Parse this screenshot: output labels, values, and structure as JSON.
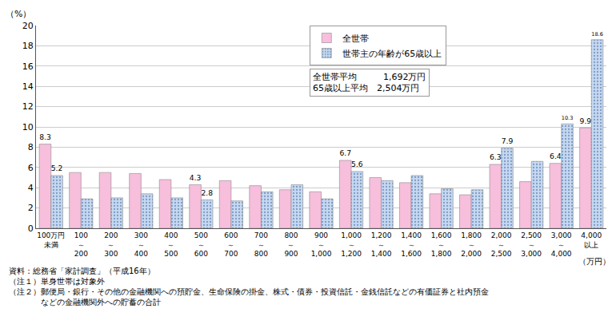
{
  "chart_data": {
    "type": "bar",
    "y_label": "（%）",
    "x_label": "（万円）",
    "categories": [
      "100万円\n未満",
      "100\n～\n200",
      "200\n～\n300",
      "300\n～\n400",
      "400\n～\n500",
      "500\n～\n600",
      "600\n～\n700",
      "700\n～\n800",
      "800\n～\n900",
      "900\n～\n1,000",
      "1,000\n～\n1,200",
      "1,200\n～\n1,400",
      "1,400\n～\n1,600",
      "1,600\n～\n1,800",
      "1,800\n～\n2,000",
      "2,000\n～\n2,500",
      "2,500\n～\n3,000",
      "3,000\n～\n4,000",
      "4,000\n以上"
    ],
    "series": [
      {
        "name": "全世帯",
        "color": "#f7bfdc",
        "marker": "solid",
        "values": [
          8.3,
          5.5,
          5.5,
          5.4,
          4.8,
          4.3,
          4.7,
          4.2,
          3.8,
          3.6,
          6.7,
          5.0,
          4.5,
          3.4,
          3.3,
          6.3,
          4.6,
          6.4,
          9.9
        ],
        "value_labels": [
          "8.3",
          null,
          null,
          null,
          null,
          "4.3",
          null,
          null,
          null,
          null,
          "6.7",
          null,
          null,
          null,
          null,
          "6.3",
          null,
          "6.4",
          "9.9"
        ]
      },
      {
        "name": "世帯主の年齢が65歳以上",
        "color": "#c6d9f0",
        "marker": "dotted",
        "values": [
          5.2,
          2.9,
          3.0,
          3.4,
          3.0,
          2.8,
          2.7,
          3.6,
          4.3,
          2.9,
          5.6,
          4.7,
          5.2,
          3.9,
          3.8,
          7.9,
          6.6,
          10.3,
          18.6
        ],
        "value_labels": [
          "5.2",
          null,
          null,
          null,
          null,
          "2.8",
          null,
          null,
          null,
          null,
          "5.6",
          null,
          null,
          null,
          null,
          "7.9",
          null,
          "10.3",
          "18.6"
        ]
      }
    ],
    "ylim": [
      0,
      20
    ],
    "yticks": [
      0,
      2,
      4,
      6,
      8,
      10,
      12,
      14,
      16,
      18,
      20
    ],
    "grid": true,
    "legend": "top",
    "data_labels": true,
    "annotations": [
      "全世帯平均　　　1,692万円",
      "65歳以上平均　2,504万円"
    ],
    "notes": [
      "資料：総務省「家計調査」（平成16年）",
      "（注１）単身世帯は対象外",
      "（注２）郵便局・銀行・その他の金融機関への預貯金、生命保険の掛金、株式・債券・投資信託・金銭信託などの有価証券と社内預金",
      "　　　　などの金融機関外への貯蓄の合計"
    ]
  }
}
